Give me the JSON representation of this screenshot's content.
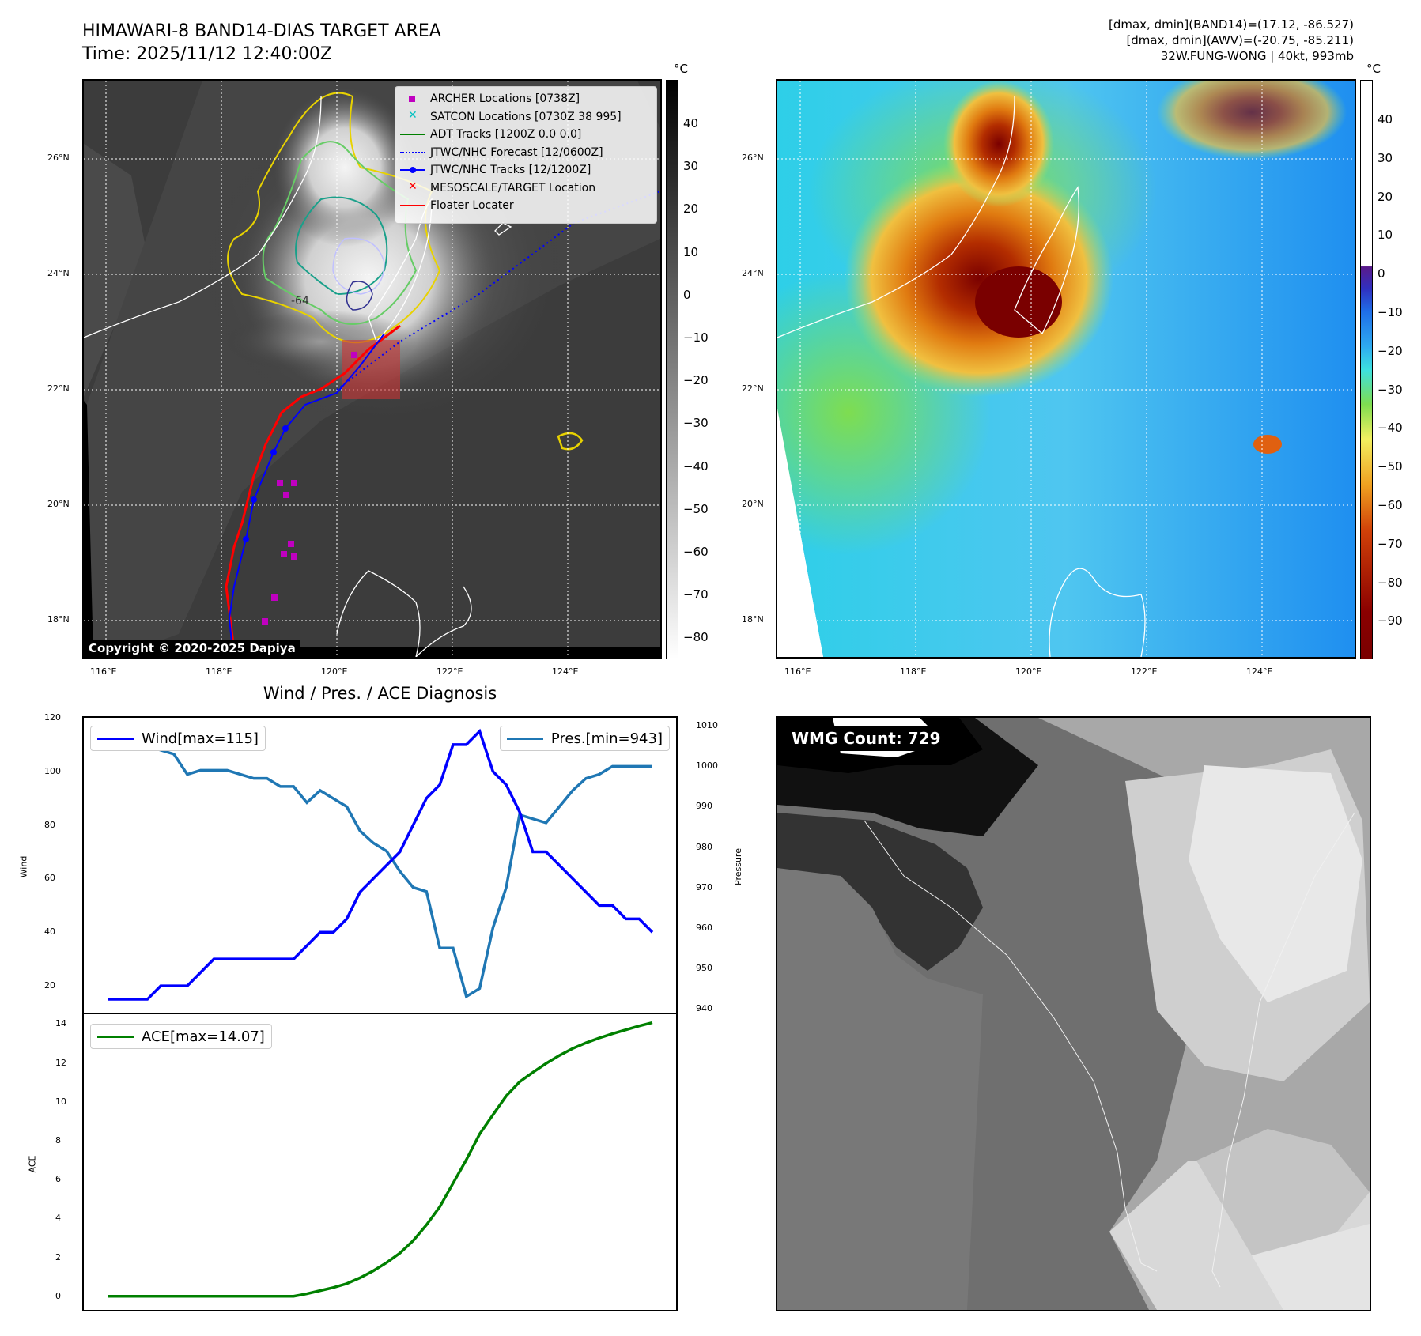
{
  "map_panel": {
    "title_line1": "HIMAWARI-8 BAND14-DIAS TARGET AREA",
    "title_line2": "Time: 2025/11/12 12:40:00Z",
    "unit": "°C",
    "colorbar_ticks": [
      "40",
      "30",
      "20",
      "10",
      "0",
      "−10",
      "−20",
      "−30",
      "−40",
      "−50",
      "−60",
      "−70",
      "−80"
    ],
    "lat_labels": [
      "26°N",
      "24°N",
      "22°N",
      "20°N",
      "18°N"
    ],
    "lon_labels": [
      "116°E",
      "118°E",
      "120°E",
      "122°E",
      "124°E"
    ],
    "copyright": "Copyright © 2020-2025 Dapiya",
    "contour_label": "-64",
    "legend": [
      {
        "label": "ARCHER Locations [0738Z]",
        "symbol": "square-marker",
        "color": "#c000c0"
      },
      {
        "label": "SATCON Locations [0730Z 38 995]",
        "symbol": "x-marker",
        "color": "#00c0c0"
      },
      {
        "label": "ADT Tracks [1200Z 0.0 0.0]",
        "symbol": "solid-line",
        "color": "#008000"
      },
      {
        "label": "JTWC/NHC Forecast [12/0600Z]",
        "symbol": "dotted-line",
        "color": "#0000ff"
      },
      {
        "label": "JTWC/NHC Tracks [12/1200Z]",
        "symbol": "line-dot",
        "color": "#0000ff"
      },
      {
        "label": "MESOSCALE/TARGET Location",
        "symbol": "x-marker",
        "color": "#ff0000"
      },
      {
        "label": "Floater Locater",
        "symbol": "solid-line",
        "color": "#ff0000"
      }
    ]
  },
  "awv_panel": {
    "info_line1": "[dmax, dmin](BAND14)=(17.12, -86.527)",
    "info_line2": "[dmax, dmin](AWV)=(-20.75, -85.211)",
    "info_line3": "32W.FUNG-WONG | 40kt, 993mb",
    "unit": "°C",
    "colorbar_ticks": [
      "40",
      "30",
      "20",
      "10",
      "0",
      "−10",
      "−20",
      "−30",
      "−40",
      "−50",
      "−60",
      "−70",
      "−80",
      "−90"
    ],
    "lat_labels": [
      "26°N",
      "24°N",
      "22°N",
      "20°N",
      "18°N"
    ],
    "lon_labels": [
      "116°E",
      "118°E",
      "120°E",
      "122°E",
      "124°E"
    ]
  },
  "diag_panel": {
    "title": "Wind / Pres. / ACE Diagnosis",
    "wind_legend": "Wind[max=115]",
    "pres_legend": "Pres.[min=943]",
    "ace_legend": "ACE[max=14.07]",
    "wind_ylabel": "Wind",
    "pres_ylabel": "Pressure",
    "ace_ylabel": "ACE",
    "colors": {
      "wind": "#0000ff",
      "pres": "#1f77b4",
      "ace": "#008000"
    }
  },
  "wmg_panel": {
    "label": "WMG Count: 729"
  },
  "chart_data": [
    {
      "type": "line",
      "title": "Wind / Pres. / ACE Diagnosis",
      "ylabel": "Wind",
      "ylim": [
        10,
        120
      ],
      "y_ticks": [
        20,
        40,
        60,
        80,
        100,
        120
      ],
      "series": [
        {
          "name": "Wind[max=115]",
          "axis": "left",
          "values": [
            15,
            15,
            15,
            15,
            20,
            20,
            20,
            25,
            30,
            30,
            30,
            30,
            30,
            30,
            30,
            35,
            40,
            40,
            45,
            55,
            60,
            65,
            70,
            80,
            90,
            95,
            110,
            110,
            115,
            100,
            95,
            85,
            70,
            70,
            65,
            60,
            55,
            50,
            50,
            45,
            45,
            40
          ]
        },
        {
          "name": "Pres.[min=943]",
          "axis": "right",
          "ylabel": "Pressure",
          "ylim": [
            939,
            1012
          ],
          "y_ticks": [
            940,
            950,
            960,
            970,
            980,
            990,
            1000,
            1010
          ],
          "values": [
            1008,
            1005,
            1005,
            1005,
            1004,
            1003,
            998,
            999,
            999,
            999,
            998,
            997,
            997,
            995,
            995,
            991,
            994,
            992,
            990,
            984,
            981,
            979,
            974,
            970,
            969,
            955,
            955,
            943,
            945,
            960,
            970,
            988,
            987,
            986,
            990,
            994,
            997,
            998,
            1000,
            1000,
            1000,
            1000
          ]
        }
      ]
    },
    {
      "type": "area",
      "ylabel": "ACE",
      "ylim": [
        -0.7,
        14.5
      ],
      "y_ticks": [
        0,
        2,
        4,
        6,
        8,
        10,
        12,
        14
      ],
      "series": [
        {
          "name": "ACE[max=14.07]",
          "values": [
            0,
            0,
            0,
            0,
            0,
            0,
            0,
            0,
            0,
            0,
            0,
            0,
            0,
            0,
            0,
            0.13,
            0.29,
            0.45,
            0.65,
            0.95,
            1.31,
            1.73,
            2.22,
            2.86,
            3.67,
            4.6,
            5.81,
            7.02,
            8.34,
            9.33,
            10.3,
            11.02,
            11.51,
            11.97,
            12.38,
            12.74,
            13.03,
            13.28,
            13.5,
            13.7,
            13.9,
            14.07
          ]
        }
      ]
    }
  ]
}
